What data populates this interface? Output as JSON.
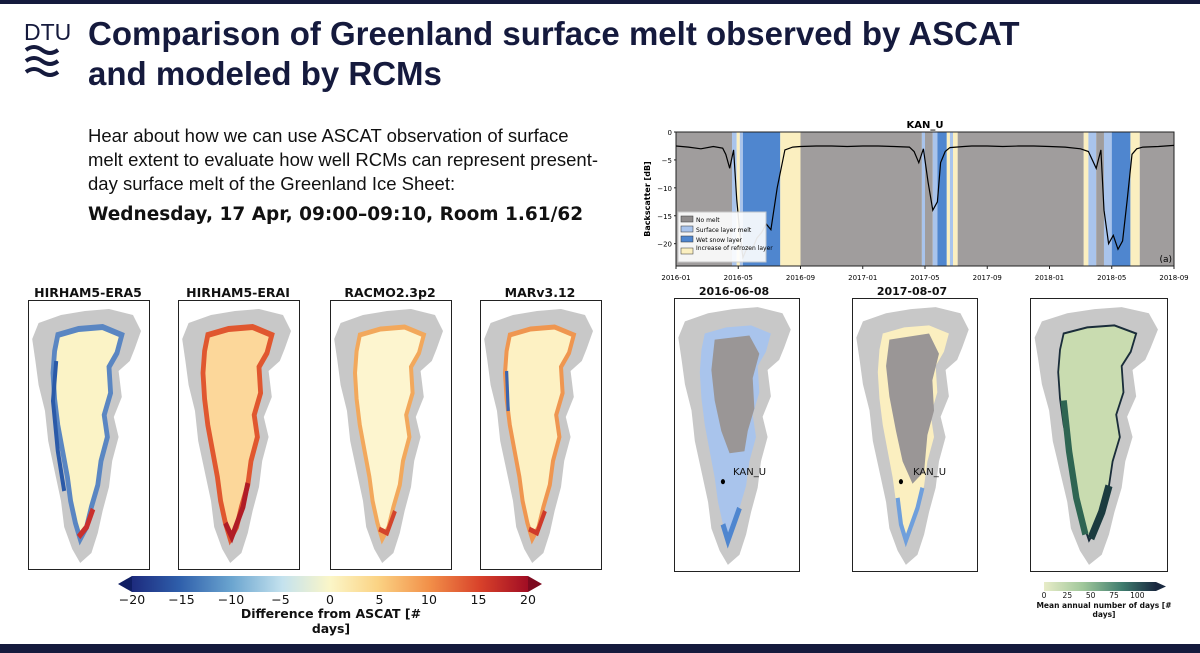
{
  "logo": {
    "text": "DTU",
    "icon": "dtu-waves-icon"
  },
  "title": {
    "line1": "Comparison of Greenland surface melt observed by ASCAT",
    "line2": "and modeled by RCMs"
  },
  "intro": "Hear about how we can use ASCAT observation of surface melt extent to evaluate how well RCMs can represent present-day surface melt of the Greenland Ice Sheet:",
  "session": "Wednesday, 17 Apr, 09:00–09:10, Room 1.61/62",
  "diff_maps": {
    "titles": [
      "HIRHAM5-ERA5",
      "HIRHAM5-ERAI",
      "RACMO2.3p2",
      "MARv3.12"
    ],
    "colorbar": {
      "ticks": [
        "−20",
        "−15",
        "−10",
        "−5",
        "0",
        "5",
        "10",
        "15",
        "20"
      ],
      "label": "Difference from ASCAT [# days]"
    }
  },
  "ascat_maps": {
    "titles": [
      "2016-06-08",
      "2017-08-07"
    ],
    "station": "KAN_U",
    "colorbar": {
      "ticks": [
        "0",
        "25",
        "50",
        "75",
        "100"
      ],
      "label": "Mean annual number of days [# days]"
    }
  },
  "colors": {
    "navy": "#151a3d",
    "no_melt": "#a09d9d",
    "surface_melt": "#a9c4ec",
    "wet_snow": "#4f86cf",
    "refrozen": "#fbefc0"
  },
  "chart_data": {
    "type": "line",
    "title": "KAN_U",
    "xlabel": "",
    "ylabel": "Backscatter [dB]",
    "ylim": [
      -24,
      0
    ],
    "yticks": [
      "0",
      "−5",
      "−10",
      "−15",
      "−20"
    ],
    "xticks": [
      "2016-01",
      "2016-05",
      "2016-09",
      "2017-01",
      "2017-05",
      "2017-09",
      "2018-01",
      "2018-05",
      "2018-09"
    ],
    "xrange": [
      0,
      32
    ],
    "panel_label": "(a)",
    "legend": [
      "No melt",
      "Surface layer melt",
      "Wet snow layer",
      "Increase of refrozen layer"
    ],
    "series": [
      {
        "name": "backscatter",
        "x": [
          0,
          0.8,
          1.6,
          2.4,
          3.0,
          3.2,
          3.45,
          3.7,
          3.9,
          4.1,
          4.3,
          4.6,
          4.9,
          5.2,
          5.5,
          5.8,
          6.1,
          6.5,
          7.0,
          7.5,
          8.0,
          9,
          10,
          11,
          12,
          13,
          14,
          15,
          15.3,
          15.6,
          15.9,
          16.2,
          16.5,
          16.8,
          17.0,
          17.3,
          17.6,
          18.0,
          18.5,
          19,
          20,
          21,
          22,
          23,
          24,
          25,
          26,
          26.5,
          27.0,
          27.3,
          27.5,
          27.8,
          28.1,
          28.4,
          28.7,
          29.0,
          29.3,
          29.6,
          30,
          31,
          32
        ],
        "values": [
          -2.5,
          -2.7,
          -3.0,
          -2.6,
          -2.9,
          -4.0,
          -6.5,
          -3.2,
          -12.0,
          -18.0,
          -22.5,
          -20.5,
          -21.0,
          -19.0,
          -18.0,
          -16.5,
          -17.5,
          -10.0,
          -3.2,
          -2.7,
          -2.6,
          -2.5,
          -2.5,
          -2.6,
          -2.5,
          -2.5,
          -2.6,
          -2.7,
          -3.5,
          -5.5,
          -3.0,
          -9.0,
          -14.0,
          -12.5,
          -5.5,
          -3.5,
          -2.8,
          -2.7,
          -2.6,
          -2.5,
          -2.5,
          -2.6,
          -2.5,
          -2.5,
          -2.6,
          -2.7,
          -3.0,
          -3.5,
          -6.5,
          -3.2,
          -14.0,
          -20.0,
          -18.5,
          -21.0,
          -19.5,
          -12.0,
          -4.0,
          -3.0,
          -2.7,
          -2.6,
          -2.4
        ]
      }
    ]
  }
}
